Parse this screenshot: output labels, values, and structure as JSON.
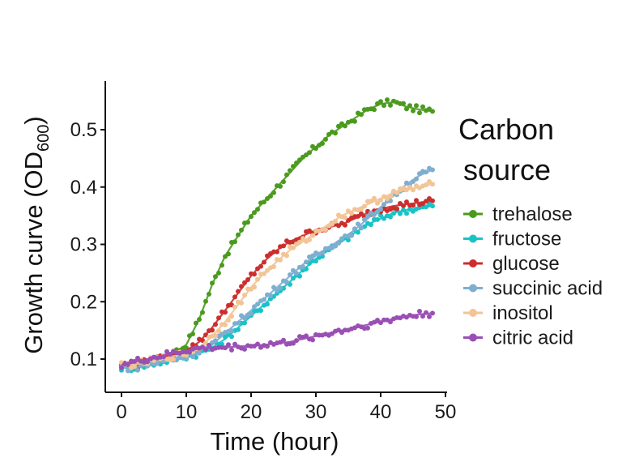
{
  "chart_data": {
    "type": "scatter",
    "title": "",
    "xlabel": "Time (hour)",
    "ylabel_main": "Growth curve (OD",
    "ylabel_sub": "600",
    "ylabel_close": ")",
    "xlim": [
      0,
      50
    ],
    "ylim": [
      0.07,
      0.57
    ],
    "xticks": [
      0,
      10,
      20,
      30,
      40,
      50
    ],
    "xtick_labels": [
      "0",
      "10",
      "20",
      "30",
      "40",
      "50"
    ],
    "yticks": [
      0.1,
      0.2,
      0.3,
      0.4,
      0.5
    ],
    "ytick_labels": [
      "0.1",
      "0.2",
      "0.3",
      "0.4",
      "0.5"
    ],
    "grid": false,
    "legend_title_line1": "Carbon",
    "legend_title_line2": "source",
    "legend_position": "right",
    "series": [
      {
        "name": "trehalose",
        "color": "#4a9a1e",
        "x": [
          0,
          2,
          4,
          6,
          8,
          10,
          12,
          14,
          16,
          18,
          20,
          22,
          24,
          26,
          28,
          30,
          32,
          34,
          36,
          38,
          40,
          42,
          44,
          46,
          48
        ],
        "y": [
          0.085,
          0.085,
          0.095,
          0.1,
          0.11,
          0.125,
          0.17,
          0.23,
          0.28,
          0.315,
          0.35,
          0.375,
          0.4,
          0.425,
          0.45,
          0.47,
          0.49,
          0.505,
          0.52,
          0.535,
          0.545,
          0.548,
          0.54,
          0.535,
          0.532
        ]
      },
      {
        "name": "fructose",
        "color": "#17c3c6",
        "x": [
          0,
          2,
          4,
          6,
          8,
          10,
          12,
          14,
          16,
          18,
          20,
          22,
          24,
          26,
          28,
          30,
          32,
          34,
          36,
          38,
          40,
          42,
          44,
          46,
          48
        ],
        "y": [
          0.085,
          0.085,
          0.09,
          0.095,
          0.1,
          0.105,
          0.11,
          0.12,
          0.135,
          0.155,
          0.175,
          0.195,
          0.215,
          0.235,
          0.255,
          0.275,
          0.29,
          0.305,
          0.32,
          0.335,
          0.345,
          0.355,
          0.36,
          0.363,
          0.367
        ]
      },
      {
        "name": "glucose",
        "color": "#cc2e2e",
        "x": [
          0,
          2,
          4,
          6,
          8,
          10,
          12,
          14,
          16,
          18,
          20,
          22,
          24,
          26,
          28,
          30,
          32,
          34,
          36,
          38,
          40,
          42,
          44,
          46,
          48
        ],
        "y": [
          0.09,
          0.09,
          0.095,
          0.1,
          0.105,
          0.115,
          0.13,
          0.155,
          0.185,
          0.215,
          0.245,
          0.27,
          0.29,
          0.305,
          0.315,
          0.325,
          0.33,
          0.335,
          0.345,
          0.355,
          0.362,
          0.367,
          0.37,
          0.373,
          0.376
        ]
      },
      {
        "name": "succinic acid",
        "color": "#7eaed0",
        "x": [
          0,
          2,
          4,
          6,
          8,
          10,
          12,
          14,
          16,
          18,
          20,
          22,
          24,
          26,
          28,
          30,
          32,
          34,
          36,
          38,
          40,
          42,
          44,
          46,
          48
        ],
        "y": [
          0.085,
          0.085,
          0.09,
          0.095,
          0.1,
          0.105,
          0.115,
          0.125,
          0.145,
          0.165,
          0.185,
          0.205,
          0.225,
          0.245,
          0.265,
          0.28,
          0.295,
          0.31,
          0.325,
          0.345,
          0.365,
          0.385,
          0.405,
          0.42,
          0.43
        ]
      },
      {
        "name": "inositol",
        "color": "#f2c496",
        "x": [
          0,
          2,
          4,
          6,
          8,
          10,
          12,
          14,
          16,
          18,
          20,
          22,
          24,
          26,
          28,
          30,
          32,
          34,
          36,
          38,
          40,
          42,
          44,
          46,
          48
        ],
        "y": [
          0.09,
          0.09,
          0.095,
          0.1,
          0.105,
          0.11,
          0.12,
          0.14,
          0.165,
          0.195,
          0.225,
          0.25,
          0.27,
          0.29,
          0.305,
          0.32,
          0.335,
          0.35,
          0.36,
          0.37,
          0.38,
          0.39,
          0.395,
          0.4,
          0.405
        ]
      },
      {
        "name": "citric acid",
        "color": "#9a4fb4",
        "x": [
          0,
          2,
          4,
          6,
          8,
          10,
          12,
          14,
          16,
          18,
          20,
          22,
          24,
          26,
          28,
          30,
          32,
          34,
          36,
          38,
          40,
          42,
          44,
          46,
          48
        ],
        "y": [
          0.09,
          0.095,
          0.1,
          0.105,
          0.11,
          0.115,
          0.118,
          0.12,
          0.12,
          0.122,
          0.123,
          0.125,
          0.127,
          0.13,
          0.135,
          0.14,
          0.145,
          0.15,
          0.155,
          0.16,
          0.165,
          0.17,
          0.175,
          0.178,
          0.18
        ]
      }
    ]
  }
}
